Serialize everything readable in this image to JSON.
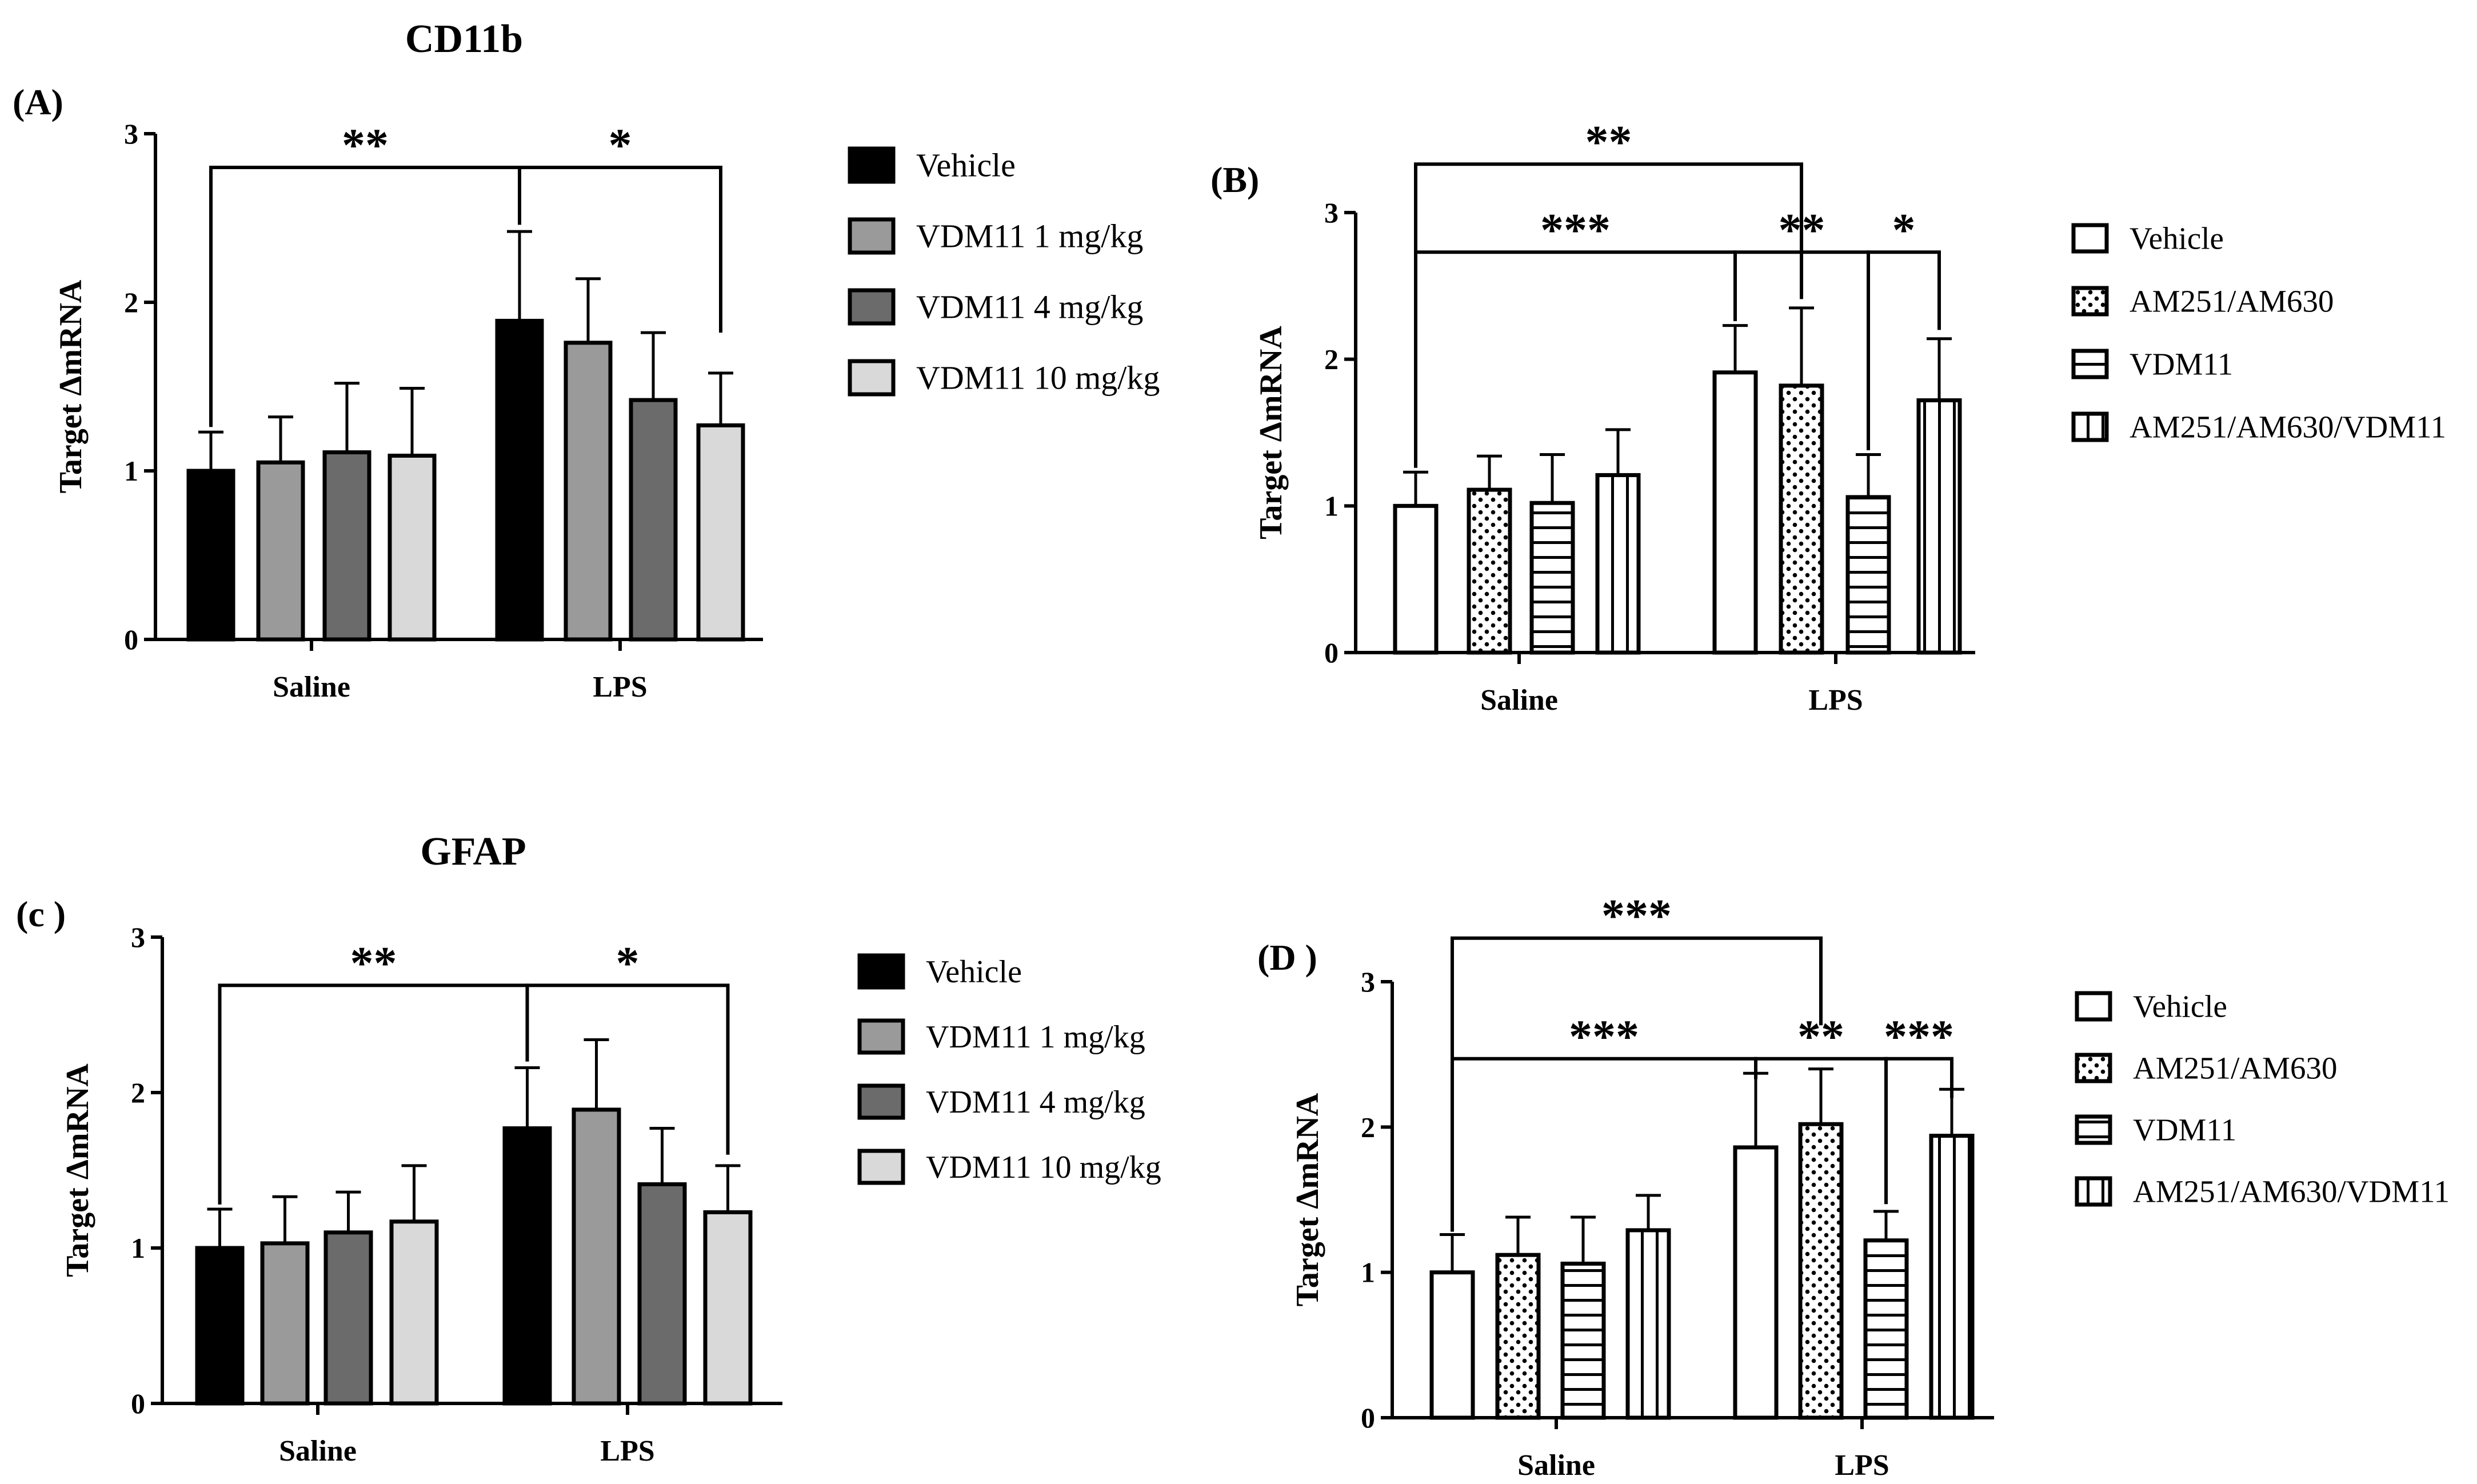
{
  "figure_titles": {
    "top": "CD11b",
    "bottom": "GFAP"
  },
  "chart_data": [
    {
      "id": "A",
      "panel_label": "(A)",
      "type": "bar",
      "categories": [
        "Saline",
        "LPS"
      ],
      "ylabel": "Target ΔmRNA",
      "xlabel": "",
      "ylim": [
        0,
        3
      ],
      "yticks": [
        "0",
        "1",
        "2",
        "3"
      ],
      "series": [
        {
          "name": "Vehicle",
          "pattern": "black",
          "values": [
            1.0,
            1.89
          ],
          "errors": [
            0.23,
            0.53
          ]
        },
        {
          "name": "VDM11 1 mg/kg",
          "pattern": "gray-mid",
          "values": [
            1.05,
            1.76
          ],
          "errors": [
            0.27,
            0.38
          ]
        },
        {
          "name": "VDM11 4 mg/kg",
          "pattern": "gray-dark",
          "values": [
            1.11,
            1.42
          ],
          "errors": [
            0.41,
            0.4
          ]
        },
        {
          "name": "VDM11 10 mg/kg",
          "pattern": "gray-light",
          "values": [
            1.09,
            1.27
          ],
          "errors": [
            0.4,
            0.31
          ]
        }
      ],
      "significance": [
        {
          "label": "**",
          "from": [
            0,
            0
          ],
          "to": [
            1,
            0
          ],
          "y": 2.8,
          "drop_to": [
            1.26,
            2.46
          ]
        },
        {
          "label": "*",
          "from": [
            1,
            0
          ],
          "to": [
            1,
            3
          ],
          "y": 2.8,
          "drop_to": [
            2.46,
            1.82
          ]
        }
      ]
    },
    {
      "id": "B",
      "panel_label": "(B)",
      "type": "bar",
      "categories": [
        "Saline",
        "LPS"
      ],
      "ylabel": "Target ΔmRNA",
      "xlabel": "",
      "ylim": [
        0,
        3
      ],
      "yticks": [
        "0",
        "1",
        "2",
        "3"
      ],
      "series": [
        {
          "name": "Vehicle",
          "pattern": "white",
          "values": [
            1.0,
            1.91
          ],
          "errors": [
            0.23,
            0.32
          ]
        },
        {
          "name": "AM251/AM630",
          "pattern": "dots",
          "values": [
            1.11,
            1.82
          ],
          "errors": [
            0.23,
            0.53
          ]
        },
        {
          "name": "VDM11",
          "pattern": "hlines",
          "values": [
            1.02,
            1.06
          ],
          "errors": [
            0.33,
            0.29
          ]
        },
        {
          "name": "AM251/AM630/VDM11",
          "pattern": "vlines",
          "values": [
            1.21,
            1.72
          ],
          "errors": [
            0.31,
            0.42
          ]
        }
      ],
      "significance": [
        {
          "label": "**",
          "from": [
            0,
            0
          ],
          "to": [
            1,
            1
          ],
          "y": 3.33,
          "drop_to": [
            1.26,
            2.41
          ]
        },
        {
          "label": "***",
          "from": [
            0,
            0
          ],
          "to": [
            1,
            0
          ],
          "y": 2.73,
          "drop_to": [
            1.26,
            2.26
          ]
        },
        {
          "label": "**",
          "from": [
            1,
            0
          ],
          "to": [
            1,
            2
          ],
          "y": 2.73,
          "drop_to": [
            2.26,
            1.38
          ]
        },
        {
          "label": "*",
          "from": [
            1,
            2
          ],
          "to": [
            1,
            3
          ],
          "y": 2.73,
          "drop_to": [
            1.38,
            2.2
          ]
        }
      ]
    },
    {
      "id": "C",
      "panel_label": "(c )",
      "type": "bar",
      "categories": [
        "Saline",
        "LPS"
      ],
      "ylabel": "Target ΔmRNA",
      "xlabel": "",
      "ylim": [
        0,
        3
      ],
      "yticks": [
        "0",
        "1",
        "2",
        "3"
      ],
      "series": [
        {
          "name": "Vehicle",
          "pattern": "black",
          "values": [
            1.0,
            1.77
          ],
          "errors": [
            0.25,
            0.39
          ]
        },
        {
          "name": "VDM11 1 mg/kg",
          "pattern": "gray-mid",
          "values": [
            1.03,
            1.89
          ],
          "errors": [
            0.3,
            0.45
          ]
        },
        {
          "name": "VDM11 4 mg/kg",
          "pattern": "gray-dark",
          "values": [
            1.1,
            1.41
          ],
          "errors": [
            0.26,
            0.36
          ]
        },
        {
          "name": "VDM11 10 mg/kg",
          "pattern": "gray-light",
          "values": [
            1.17,
            1.23
          ],
          "errors": [
            0.36,
            0.3
          ]
        }
      ],
      "significance": [
        {
          "label": "**",
          "from": [
            0,
            0
          ],
          "to": [
            1,
            0
          ],
          "y": 2.69,
          "drop_to": [
            1.28,
            2.2
          ]
        },
        {
          "label": "*",
          "from": [
            1,
            0
          ],
          "to": [
            1,
            3
          ],
          "y": 2.69,
          "drop_to": [
            2.2,
            1.6
          ]
        }
      ]
    },
    {
      "id": "D",
      "panel_label": "(D )",
      "type": "bar",
      "categories": [
        "Saline",
        "LPS"
      ],
      "ylabel": "Target ΔmRNA",
      "xlabel": "",
      "ylim": [
        0,
        3
      ],
      "yticks": [
        "0",
        "1",
        "2",
        "3"
      ],
      "series": [
        {
          "name": "Vehicle",
          "pattern": "white",
          "values": [
            1.0,
            1.86
          ],
          "errors": [
            0.26,
            0.51
          ]
        },
        {
          "name": "AM251/AM630",
          "pattern": "dots",
          "values": [
            1.12,
            2.02
          ],
          "errors": [
            0.26,
            0.38
          ]
        },
        {
          "name": "VDM11",
          "pattern": "hlines",
          "values": [
            1.06,
            1.22
          ],
          "errors": [
            0.32,
            0.2
          ]
        },
        {
          "name": "AM251/AM630/VDM11",
          "pattern": "vlines",
          "values": [
            1.29,
            1.94
          ],
          "errors": [
            0.24,
            0.32
          ]
        }
      ],
      "significance": [
        {
          "label": "***",
          "from": [
            0,
            0
          ],
          "to": [
            1,
            1
          ],
          "y": 3.3,
          "drop_to": [
            1.28,
            2.7
          ]
        },
        {
          "label": "***",
          "from": [
            0,
            0
          ],
          "to": [
            1,
            0
          ],
          "y": 2.47,
          "drop_to": [
            1.28,
            2.33
          ]
        },
        {
          "label": "**",
          "from": [
            1,
            0
          ],
          "to": [
            1,
            2
          ],
          "y": 2.47,
          "drop_to": [
            2.33,
            1.47
          ]
        },
        {
          "label": "***",
          "from": [
            1,
            2
          ],
          "to": [
            1,
            3
          ],
          "y": 2.47,
          "drop_to": [
            1.47,
            2.2
          ]
        }
      ]
    }
  ]
}
